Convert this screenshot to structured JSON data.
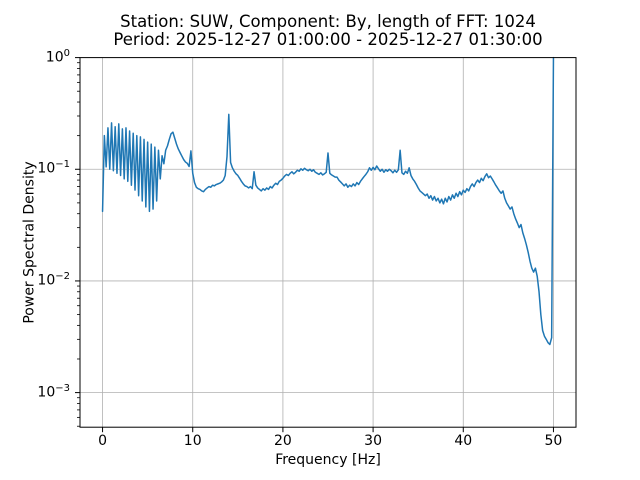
{
  "chart_data": {
    "type": "line",
    "title_lines": [
      "Station: SUW, Component: By, length of FFT: 1024",
      "Period: 2025-12-27 01:00:00 - 2025-12-27 01:30:00"
    ],
    "xlabel": "Frequency [Hz]",
    "ylabel": "Power Spectral Density",
    "grid": true,
    "legend": false,
    "x_axis": {
      "scale": "linear",
      "min": -2.5,
      "max": 52.5,
      "ticks": [
        0,
        10,
        20,
        30,
        40,
        50
      ]
    },
    "y_axis": {
      "scale": "log",
      "min": 0.00049,
      "max": 1.0,
      "tick_label_base": "10",
      "tick_exponents": [
        0,
        -1,
        -2,
        -3
      ]
    },
    "colors": {
      "line": "#1f77b4",
      "grid": "#b0b0b0",
      "spine": "#000000",
      "background": "#ffffff"
    },
    "series": [
      {
        "name": "PSD",
        "x_start": 0,
        "x_step": 0.2,
        "values": [
          0.042,
          0.2,
          0.105,
          0.235,
          0.1,
          0.26,
          0.097,
          0.24,
          0.092,
          0.255,
          0.088,
          0.23,
          0.082,
          0.235,
          0.078,
          0.22,
          0.072,
          0.21,
          0.065,
          0.2,
          0.058,
          0.195,
          0.052,
          0.185,
          0.046,
          0.175,
          0.042,
          0.168,
          0.044,
          0.158,
          0.052,
          0.148,
          0.082,
          0.132,
          0.112,
          0.148,
          0.162,
          0.185,
          0.208,
          0.215,
          0.19,
          0.168,
          0.152,
          0.141,
          0.131,
          0.122,
          0.116,
          0.113,
          0.106,
          0.146,
          0.092,
          0.076,
          0.069,
          0.067,
          0.066,
          0.064,
          0.063,
          0.066,
          0.068,
          0.07,
          0.069,
          0.072,
          0.071,
          0.073,
          0.074,
          0.075,
          0.077,
          0.08,
          0.088,
          0.13,
          0.31,
          0.115,
          0.103,
          0.096,
          0.091,
          0.088,
          0.083,
          0.078,
          0.074,
          0.071,
          0.07,
          0.068,
          0.07,
          0.067,
          0.095,
          0.072,
          0.068,
          0.066,
          0.064,
          0.067,
          0.065,
          0.068,
          0.066,
          0.07,
          0.068,
          0.072,
          0.075,
          0.073,
          0.078,
          0.08,
          0.083,
          0.087,
          0.09,
          0.088,
          0.092,
          0.095,
          0.091,
          0.094,
          0.098,
          0.096,
          0.101,
          0.098,
          0.102,
          0.099,
          0.097,
          0.1,
          0.096,
          0.099,
          0.094,
          0.092,
          0.09,
          0.093,
          0.089,
          0.091,
          0.094,
          0.14,
          0.092,
          0.089,
          0.087,
          0.085,
          0.085,
          0.08,
          0.077,
          0.074,
          0.071,
          0.074,
          0.069,
          0.072,
          0.07,
          0.074,
          0.071,
          0.076,
          0.073,
          0.078,
          0.082,
          0.086,
          0.09,
          0.095,
          0.103,
          0.098,
          0.104,
          0.099,
          0.107,
          0.101,
          0.096,
          0.1,
          0.094,
          0.099,
          0.096,
          0.1,
          0.097,
          0.093,
          0.098,
          0.094,
          0.099,
          0.148,
          0.093,
          0.09,
          0.096,
          0.092,
          0.103,
          0.088,
          0.082,
          0.078,
          0.073,
          0.068,
          0.064,
          0.062,
          0.06,
          0.058,
          0.06,
          0.055,
          0.058,
          0.053,
          0.057,
          0.052,
          0.055,
          0.05,
          0.054,
          0.049,
          0.055,
          0.051,
          0.057,
          0.053,
          0.059,
          0.055,
          0.061,
          0.057,
          0.063,
          0.059,
          0.065,
          0.062,
          0.067,
          0.064,
          0.07,
          0.074,
          0.07,
          0.076,
          0.08,
          0.076,
          0.083,
          0.079,
          0.086,
          0.091,
          0.084,
          0.087,
          0.082,
          0.077,
          0.072,
          0.068,
          0.064,
          0.061,
          0.064,
          0.055,
          0.05,
          0.047,
          0.044,
          0.046,
          0.04,
          0.036,
          0.033,
          0.03,
          0.032,
          0.027,
          0.024,
          0.021,
          0.018,
          0.015,
          0.013,
          0.012,
          0.013,
          0.011,
          0.008,
          0.005,
          0.0036,
          0.0032,
          0.003,
          0.0028,
          0.0027,
          0.0031,
          1.0
        ]
      }
    ]
  }
}
